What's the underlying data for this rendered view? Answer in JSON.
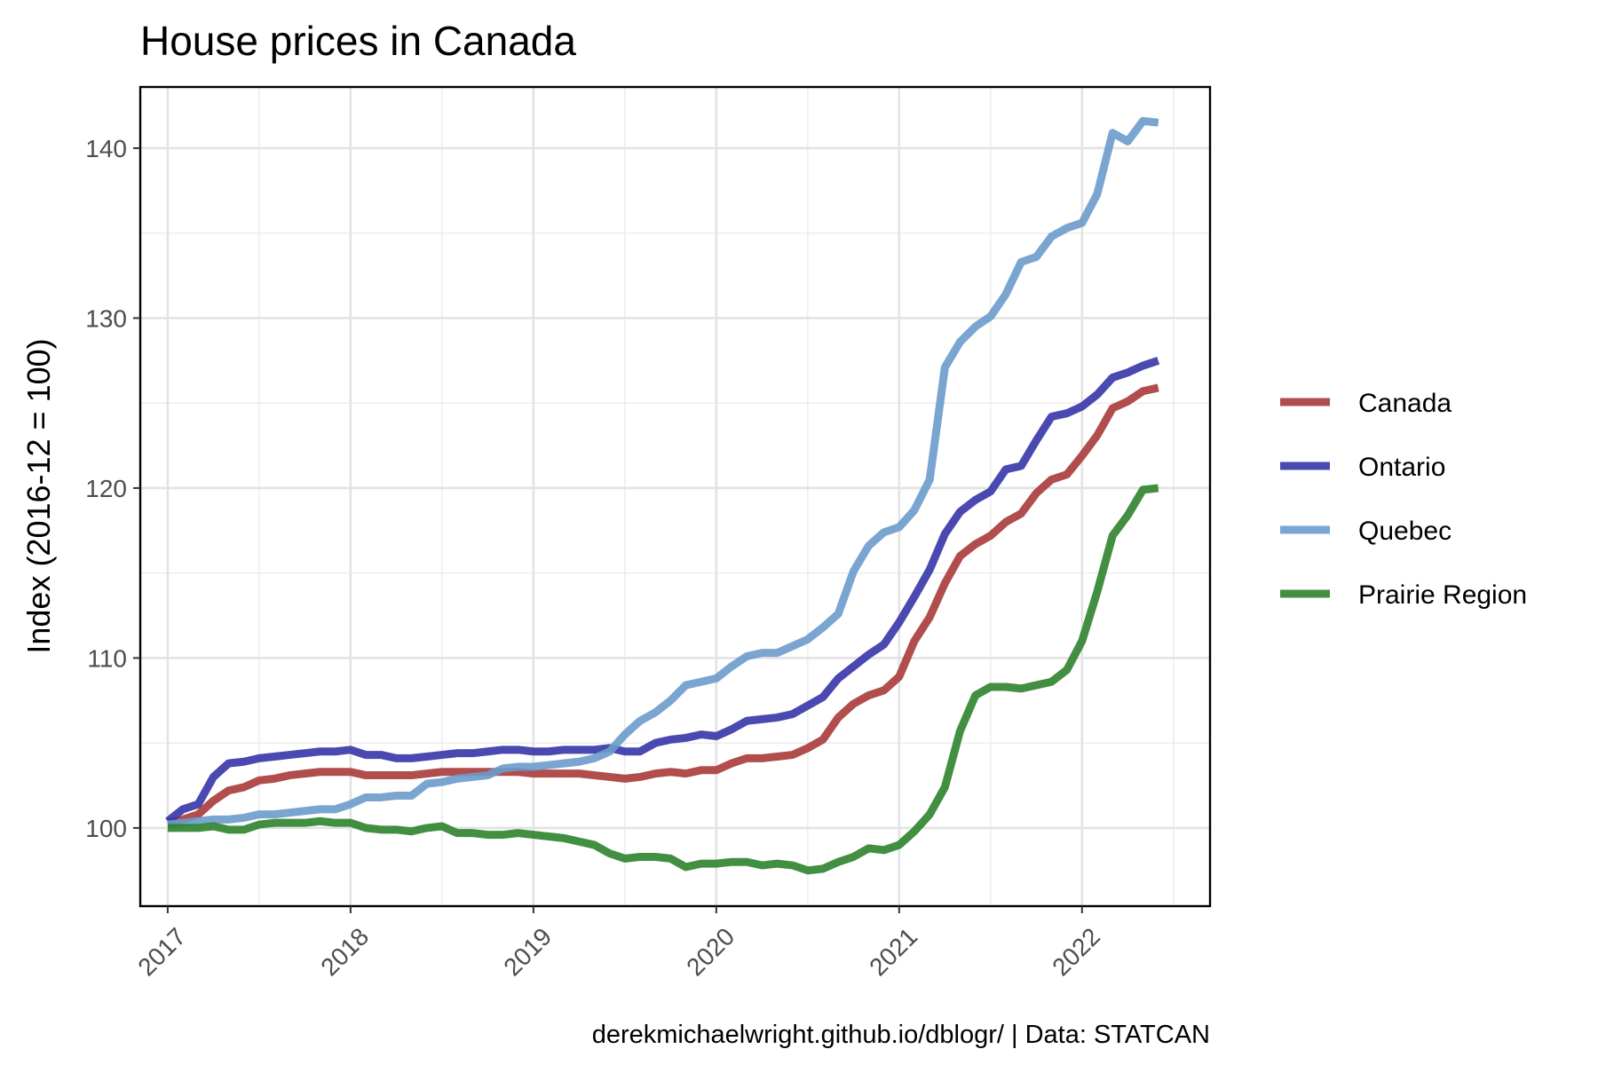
{
  "chart_data": {
    "type": "line",
    "title": "House prices in Canada",
    "xlabel": "",
    "ylabel": "Index (2016-12 = 100)",
    "caption": "derekmichaelwright.github.io/dblogr/ | Data: STATCAN",
    "x_ticks": [
      "2017",
      "2018",
      "2019",
      "2020",
      "2021",
      "2022"
    ],
    "y_ticks": [
      100,
      110,
      120,
      130,
      140
    ],
    "xlim": [
      2016.85,
      2022.7
    ],
    "ylim": [
      95.4,
      143.6
    ],
    "grid": true,
    "legend": "right",
    "x": [
      2017.0,
      2017.083,
      2017.167,
      2017.25,
      2017.333,
      2017.417,
      2017.5,
      2017.583,
      2017.667,
      2017.75,
      2017.833,
      2017.917,
      2018.0,
      2018.083,
      2018.167,
      2018.25,
      2018.333,
      2018.417,
      2018.5,
      2018.583,
      2018.667,
      2018.75,
      2018.833,
      2018.917,
      2019.0,
      2019.083,
      2019.167,
      2019.25,
      2019.333,
      2019.417,
      2019.5,
      2019.583,
      2019.667,
      2019.75,
      2019.833,
      2019.917,
      2020.0,
      2020.083,
      2020.167,
      2020.25,
      2020.333,
      2020.417,
      2020.5,
      2020.583,
      2020.667,
      2020.75,
      2020.833,
      2020.917,
      2021.0,
      2021.083,
      2021.167,
      2021.25,
      2021.333,
      2021.417,
      2021.5,
      2021.583,
      2021.667,
      2021.75,
      2021.833,
      2021.917,
      2022.0,
      2022.083,
      2022.167,
      2022.25,
      2022.333,
      2022.417
    ],
    "series": [
      {
        "name": "Canada",
        "color": "#a83a3a",
        "values": [
          100.3,
          100.5,
          100.8,
          101.6,
          102.2,
          102.4,
          102.8,
          102.9,
          103.1,
          103.2,
          103.3,
          103.3,
          103.3,
          103.1,
          103.1,
          103.1,
          103.1,
          103.2,
          103.3,
          103.3,
          103.3,
          103.3,
          103.3,
          103.3,
          103.2,
          103.2,
          103.2,
          103.2,
          103.1,
          103.0,
          102.9,
          103.0,
          103.2,
          103.3,
          103.2,
          103.4,
          103.4,
          103.8,
          104.1,
          104.1,
          104.2,
          104.3,
          104.7,
          105.2,
          106.5,
          107.3,
          107.8,
          108.1,
          108.9,
          111.0,
          112.4,
          114.4,
          116.0,
          116.7,
          117.2,
          118.0,
          118.5,
          119.7,
          120.5,
          120.8,
          121.9,
          123.1,
          124.7,
          125.1,
          125.7,
          125.9
        ]
      },
      {
        "name": "Ontario",
        "color": "#3535a8",
        "values": [
          100.4,
          101.1,
          101.4,
          103.0,
          103.8,
          103.9,
          104.1,
          104.2,
          104.3,
          104.4,
          104.5,
          104.5,
          104.6,
          104.3,
          104.3,
          104.1,
          104.1,
          104.2,
          104.3,
          104.4,
          104.4,
          104.5,
          104.6,
          104.6,
          104.5,
          104.5,
          104.6,
          104.6,
          104.6,
          104.7,
          104.5,
          104.5,
          105.0,
          105.2,
          105.3,
          105.5,
          105.4,
          105.8,
          106.3,
          106.4,
          106.5,
          106.7,
          107.2,
          107.7,
          108.8,
          109.5,
          110.2,
          110.8,
          112.1,
          113.6,
          115.2,
          117.3,
          118.6,
          119.3,
          119.8,
          121.1,
          121.3,
          122.8,
          124.2,
          124.4,
          124.8,
          125.5,
          126.5,
          126.8,
          127.2,
          127.5
        ]
      },
      {
        "name": "Quebec",
        "color": "#6a9bcb",
        "values": [
          100.2,
          100.3,
          100.4,
          100.5,
          100.5,
          100.6,
          100.8,
          100.8,
          100.9,
          101.0,
          101.1,
          101.1,
          101.4,
          101.8,
          101.8,
          101.9,
          101.9,
          102.6,
          102.7,
          102.9,
          103.0,
          103.1,
          103.5,
          103.6,
          103.6,
          103.7,
          103.8,
          103.9,
          104.1,
          104.5,
          105.5,
          106.3,
          106.8,
          107.5,
          108.4,
          108.6,
          108.8,
          109.5,
          110.1,
          110.3,
          110.3,
          110.7,
          111.1,
          111.8,
          112.6,
          115.1,
          116.6,
          117.4,
          117.7,
          118.7,
          120.5,
          127.1,
          128.6,
          129.5,
          130.1,
          131.4,
          133.3,
          133.6,
          134.8,
          135.3,
          135.6,
          137.3,
          140.9,
          140.4,
          141.6,
          141.5
        ]
      },
      {
        "name": "Prairie Region",
        "color": "#2e832e",
        "values": [
          100.0,
          100.0,
          100.0,
          100.1,
          99.9,
          99.9,
          100.2,
          100.3,
          100.3,
          100.3,
          100.4,
          100.3,
          100.3,
          100.0,
          99.9,
          99.9,
          99.8,
          100.0,
          100.1,
          99.7,
          99.7,
          99.6,
          99.6,
          99.7,
          99.6,
          99.5,
          99.4,
          99.2,
          99.0,
          98.5,
          98.2,
          98.3,
          98.3,
          98.2,
          97.7,
          97.9,
          97.9,
          98.0,
          98.0,
          97.8,
          97.9,
          97.8,
          97.5,
          97.6,
          98.0,
          98.3,
          98.8,
          98.7,
          99.0,
          99.8,
          100.8,
          102.4,
          105.7,
          107.8,
          108.3,
          108.3,
          108.2,
          108.4,
          108.6,
          109.3,
          111.0,
          113.9,
          117.2,
          118.4,
          119.9,
          120.0
        ]
      }
    ]
  }
}
